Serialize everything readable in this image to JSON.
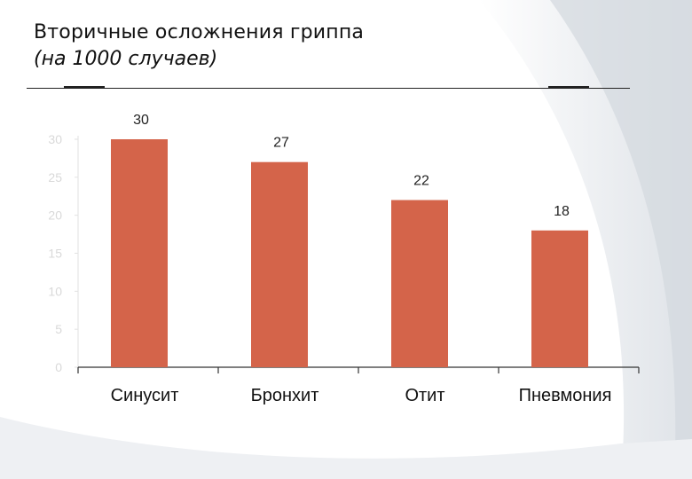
{
  "header": {
    "title": "Вторичные осложнения гриппа",
    "subtitle": "(на 1000 случаев)"
  },
  "colors": {
    "bar": "#d4644a",
    "axis": "#333333",
    "tick_label": "#d9d9d9",
    "data_label": "#222222"
  },
  "chart_data": {
    "type": "bar",
    "title": "Вторичные осложнения гриппа (на 1000 случаев)",
    "categories": [
      "Синусит",
      "Бронхит",
      "Отит",
      "Пневмония"
    ],
    "values": [
      30,
      27,
      22,
      18
    ],
    "data_labels": [
      "30",
      "27",
      "22",
      "18"
    ],
    "yticks": [
      "0",
      "5",
      "10",
      "15",
      "20",
      "25",
      "30"
    ],
    "ylim": [
      0,
      30
    ],
    "xlabel": "",
    "ylabel": "",
    "grid": false,
    "legend": "none"
  }
}
